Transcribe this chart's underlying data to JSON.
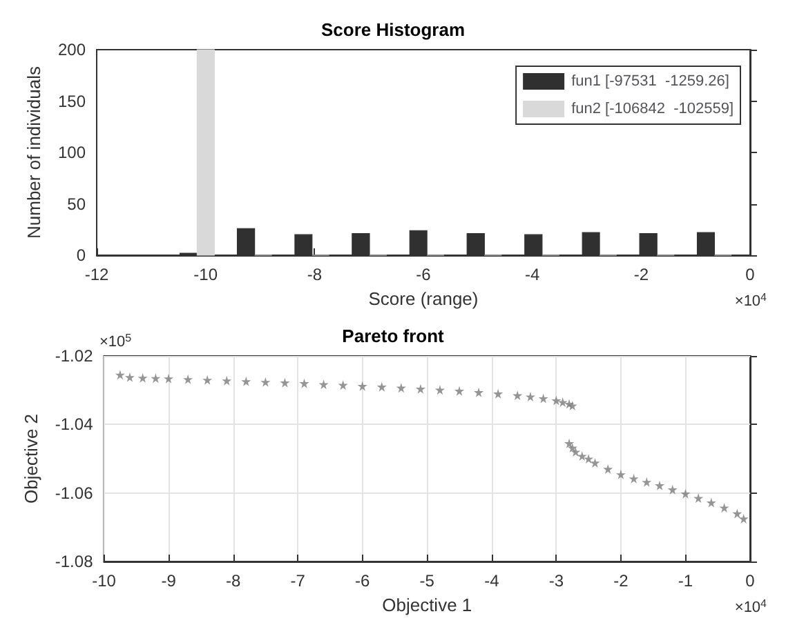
{
  "chart_data": [
    {
      "type": "histogram",
      "title": "Score Histogram",
      "xlabel": "Score (range)",
      "ylabel": "Number of individuals",
      "bins": [
        -10.68,
        -9.63,
        -8.57,
        -7.52,
        -6.46,
        -5.41,
        -4.35,
        -3.29,
        -2.24,
        -1.18,
        -0.13
      ],
      "series": [
        {
          "name": "fun1 [-97531  -1259.26]",
          "color": "#303030",
          "values": [
            2,
            26,
            20,
            21,
            24,
            21,
            20,
            22,
            21,
            22
          ]
        },
        {
          "name": "fun2 [-106842  -102559]",
          "color": "#d9d9d9",
          "values": [
            200,
            0,
            0,
            0,
            0,
            0,
            0,
            0,
            0,
            0
          ]
        }
      ],
      "xlim": [
        -12,
        0
      ],
      "xticks": [
        -12,
        -10,
        -8,
        -6,
        -4,
        -2,
        0
      ],
      "ylim": [
        0,
        200
      ],
      "yticks": [
        0,
        50,
        100,
        150,
        200
      ],
      "grid": false,
      "legend": "top right",
      "annotations": [
        "×10$^{4}$"
      ]
    },
    {
      "type": "scatter",
      "title": "Pareto front",
      "xlabel": "Objective 1",
      "ylabel": "Objective 2",
      "marker": "star",
      "series": [
        {
          "color": "#7a7a7a",
          "x": [
            -9.75,
            -9.6,
            -9.4,
            -9.2,
            -9.0,
            -8.7,
            -8.4,
            -8.1,
            -7.8,
            -7.5,
            -7.2,
            -6.9,
            -6.6,
            -6.3,
            -6.0,
            -5.7,
            -5.4,
            -5.1,
            -4.8,
            -4.5,
            -4.2,
            -3.9,
            -3.6,
            -3.4,
            -3.2,
            -3.0,
            -2.9,
            -2.8,
            -2.75,
            -2.8,
            -2.75,
            -2.7,
            -2.6,
            -2.5,
            -2.4,
            -2.2,
            -2.0,
            -1.8,
            -1.6,
            -1.4,
            -1.2,
            -1.0,
            -0.8,
            -0.6,
            -0.4,
            -0.2,
            -0.1
          ],
          "values": [
            -1.0255,
            -1.0262,
            -1.0264,
            -1.0265,
            -1.0266,
            -1.0268,
            -1.027,
            -1.0272,
            -1.0274,
            -1.0276,
            -1.0278,
            -1.028,
            -1.0283,
            -1.0285,
            -1.0288,
            -1.029,
            -1.0293,
            -1.0296,
            -1.0299,
            -1.0302,
            -1.0306,
            -1.031,
            -1.0315,
            -1.0319,
            -1.0324,
            -1.033,
            -1.0335,
            -1.034,
            -1.0345,
            -1.0455,
            -1.0468,
            -1.048,
            -1.0492,
            -1.05,
            -1.0512,
            -1.053,
            -1.0546,
            -1.0558,
            -1.0568,
            -1.0578,
            -1.059,
            -1.0602,
            -1.0615,
            -1.0628,
            -1.0643,
            -1.066,
            -1.0675
          ]
        }
      ],
      "xlim": [
        -10,
        0
      ],
      "xticks": [
        -10,
        -9,
        -8,
        -7,
        -6,
        -5,
        -4,
        -3,
        -2,
        -1,
        0
      ],
      "ylim": [
        -1.08,
        -1.02
      ],
      "yticks": [
        -1.08,
        -1.06,
        -1.04,
        -1.02
      ],
      "grid": true,
      "annotations": [
        "×10$^{5}$",
        "×10$^{4}$"
      ]
    }
  ]
}
